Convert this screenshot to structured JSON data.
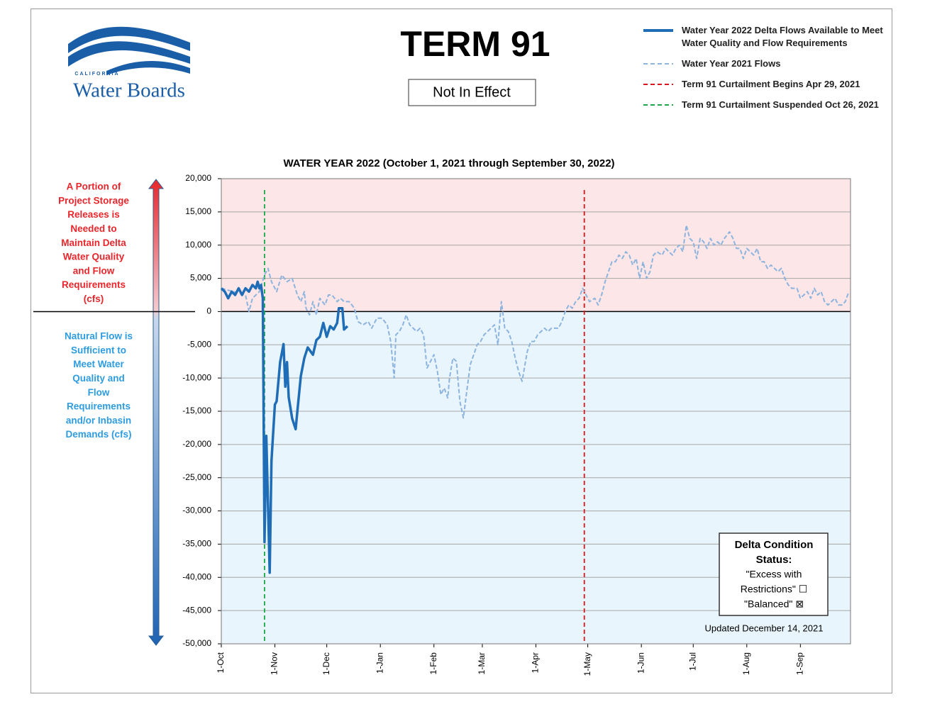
{
  "logo": {
    "state": "CALIFORNIA",
    "name": "Water Boards"
  },
  "title": "TERM 91",
  "status": "Not In Effect",
  "annotations": {
    "above": [
      "A Portion of",
      "Project Storage",
      "Releases is",
      "Needed to",
      "Maintain Delta",
      "Water Quality",
      "and Flow",
      "Requirements",
      "(cfs)"
    ],
    "below": [
      "Natural Flow is",
      "Sufficient to",
      "Meet Water",
      "Quality  and",
      "Flow",
      "Requirements",
      "and/or Inbasin",
      "Demands  (cfs)"
    ]
  },
  "condition_box": {
    "title": [
      "Delta Condition",
      "Status:"
    ],
    "lines": [
      "\"Excess with",
      "Restrictions\" ☐",
      "\"Balanced\" ⊠"
    ]
  },
  "updated": "Updated December 14, 2021",
  "chart_data": {
    "type": "line",
    "title": "WATER YEAR 2022 (October 1, 2021 through September 30, 2022)",
    "xlim": [
      0,
      364
    ],
    "xticks": [
      {
        "value": 0,
        "label": "1-Oct"
      },
      {
        "value": 31,
        "label": "1-Nov"
      },
      {
        "value": 61,
        "label": "1-Dec"
      },
      {
        "value": 92,
        "label": "1-Jan"
      },
      {
        "value": 123,
        "label": "1-Feb"
      },
      {
        "value": 151,
        "label": "1-Mar"
      },
      {
        "value": 182,
        "label": "1-Apr"
      },
      {
        "value": 212,
        "label": "1-May"
      },
      {
        "value": 243,
        "label": "1-Jun"
      },
      {
        "value": 273,
        "label": "1-Jul"
      },
      {
        "value": 304,
        "label": "1-Aug"
      },
      {
        "value": 335,
        "label": "1-Sep"
      }
    ],
    "ylim": [
      -50000,
      20000
    ],
    "yticks": [
      {
        "value": 20000,
        "label": "20,000"
      },
      {
        "value": 15000,
        "label": "15,000"
      },
      {
        "value": 10000,
        "label": "10,000"
      },
      {
        "value": 5000,
        "label": "5,000"
      },
      0,
      {
        "value": -5000,
        "label": "-5,000"
      },
      {
        "value": -10000,
        "label": "-10,000"
      },
      {
        "value": -15000,
        "label": "-15,000"
      },
      {
        "value": -20000,
        "label": "-20,000"
      },
      {
        "value": -25000,
        "label": "-25,000"
      },
      {
        "value": -30000,
        "label": "-30,000"
      },
      {
        "value": -35000,
        "label": "-35,000"
      },
      {
        "value": -40000,
        "label": "-40,000"
      },
      {
        "value": -45000,
        "label": "-45,000"
      },
      {
        "value": -50000,
        "label": "-50,000"
      }
    ],
    "grid": true,
    "region_colors": {
      "above": "#fde6e7",
      "below": "#e9f5fc"
    },
    "series": [
      {
        "name": "Water Year 2022 Delta Flows Available to Meet Water Quality and Flow Requirements",
        "color": "#1e6db6",
        "dashed": false,
        "x": [
          0,
          2,
          4,
          6,
          8,
          10,
          12,
          14,
          16,
          18,
          20,
          21,
          22,
          23,
          24,
          25,
          26,
          28,
          29,
          31,
          32,
          34,
          36,
          37,
          38,
          39,
          41,
          43,
          44,
          46,
          48,
          50,
          53,
          55,
          57,
          59,
          61,
          63,
          65,
          67,
          68,
          70,
          71,
          73
        ],
        "values": [
          3500,
          3000,
          2000,
          3000,
          2500,
          3500,
          2500,
          3500,
          3000,
          4000,
          3500,
          4500,
          3500,
          4000,
          2000,
          -34700,
          -18700,
          -39300,
          -22500,
          -14000,
          -13500,
          -7600,
          -4900,
          -11300,
          -7600,
          -12900,
          -16100,
          -17700,
          -15000,
          -9700,
          -7000,
          -5400,
          -6500,
          -4300,
          -3800,
          -1700,
          -3800,
          -2200,
          -2700,
          -1700,
          500,
          500,
          -2700,
          -2200
        ]
      },
      {
        "name": "Water Year 2021 Flows",
        "color": "#8db4de",
        "dashed": true,
        "x": [
          0,
          7,
          14,
          16,
          18,
          22,
          25,
          27,
          29,
          32,
          35,
          38,
          41,
          44,
          46,
          48,
          49,
          51,
          53,
          55,
          57,
          60,
          62,
          64,
          67,
          69,
          71,
          74,
          77,
          79,
          82,
          85,
          87,
          90,
          93,
          96,
          98,
          100,
          101,
          103,
          105,
          107,
          109,
          111,
          113,
          115,
          117,
          119,
          121,
          123,
          125,
          127,
          129,
          131,
          132,
          134,
          136,
          138,
          140,
          142,
          144,
          146,
          148,
          150,
          152,
          154,
          156,
          158,
          160,
          162,
          164,
          166,
          168,
          170,
          172,
          174,
          177,
          179,
          181,
          183,
          185,
          187,
          189,
          191,
          193,
          195,
          197,
          199,
          201,
          203,
          205,
          207,
          209,
          211,
          213,
          216,
          218,
          220,
          222,
          224,
          226,
          228,
          230,
          232,
          234,
          236,
          238,
          240,
          242,
          244,
          246,
          248,
          250,
          252,
          255,
          257,
          259,
          261,
          263,
          265,
          267,
          269,
          271,
          273,
          275,
          277,
          279,
          281,
          283,
          285,
          287,
          289,
          291,
          294,
          296,
          298,
          300,
          302,
          304,
          306,
          308,
          310,
          312,
          314,
          316,
          318,
          320,
          322,
          324,
          326,
          328,
          330,
          333,
          335,
          337,
          339,
          341,
          343,
          345,
          347,
          349,
          351,
          353,
          355,
          357,
          359,
          361,
          363
        ],
        "values": [
          3500,
          3000,
          2500,
          0,
          2000,
          3000,
          5500,
          6500,
          4500,
          3000,
          5500,
          4500,
          5000,
          2500,
          1500,
          3000,
          500,
          -500,
          1500,
          -500,
          2000,
          1000,
          2500,
          2500,
          1500,
          2000,
          1500,
          1500,
          500,
          -1500,
          -2000,
          -1500,
          -2500,
          -1000,
          -1000,
          -2000,
          -4500,
          -10000,
          -3500,
          -3000,
          -2000,
          -500,
          -2000,
          -2500,
          -3000,
          -2500,
          -3500,
          -8500,
          -7500,
          -6500,
          -9000,
          -12500,
          -11500,
          -13000,
          -10000,
          -7000,
          -7500,
          -13500,
          -16000,
          -12000,
          -8000,
          -6500,
          -5000,
          -4500,
          -3500,
          -3000,
          -2500,
          -2000,
          -5000,
          1500,
          -2500,
          -3000,
          -4500,
          -7000,
          -9000,
          -10500,
          -6000,
          -4500,
          -4500,
          -3500,
          -3000,
          -2500,
          -3000,
          -2500,
          -2500,
          -2500,
          -1500,
          0,
          1000,
          500,
          1500,
          2000,
          3500,
          2500,
          1500,
          2000,
          1000,
          2500,
          4500,
          6000,
          7500,
          7500,
          8500,
          8000,
          9000,
          8500,
          7000,
          8000,
          5000,
          7500,
          5000,
          6000,
          8500,
          9000,
          8500,
          9500,
          9000,
          8500,
          9500,
          10000,
          9000,
          13000,
          11000,
          10500,
          8000,
          11000,
          10500,
          9500,
          11000,
          10000,
          10500,
          10000,
          11000,
          12000,
          11000,
          9500,
          9500,
          8000,
          9500,
          9000,
          8500,
          9500,
          7500,
          7500,
          6500,
          7000,
          6500,
          6000,
          6500,
          5000,
          4000,
          3500,
          3500,
          2000,
          2500,
          3000,
          2000,
          3500,
          2500,
          3000,
          1500,
          1000,
          1500,
          2000,
          1000,
          1000,
          1500,
          3000
        ]
      }
    ],
    "vlines": [
      {
        "name": "Term 91 Curtailment Begins Apr 29, 2021",
        "color": "#e0141b",
        "x": 210
      },
      {
        "name": "Term 91 Curtailment Suspended Oct 26, 2021",
        "color": "#19a84a",
        "x": 25
      }
    ]
  }
}
